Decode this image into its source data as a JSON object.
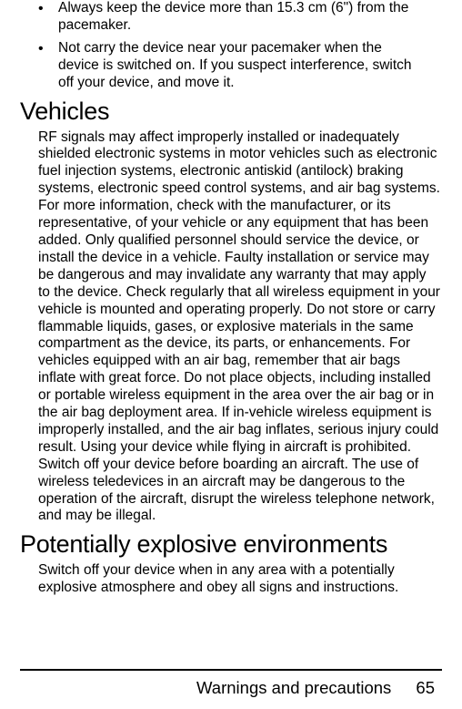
{
  "bullets": [
    "Always keep the device more than 15.3 cm (6\") from the pacemaker.",
    "Not carry the device near your pacemaker when the device is switched on. If you suspect interference, switch off your device, and move it."
  ],
  "sections": [
    {
      "heading": "Vehicles",
      "body": "RF signals may affect improperly installed or inadequately shielded electronic systems in motor vehicles such as electronic fuel injection systems, electronic antiskid (antilock) braking systems, electronic speed control systems, and air bag systems. For more information, check with the manufacturer, or its representative, of your vehicle or any equipment that has been added. Only qualified personnel should service the device, or install the device in a vehicle. Faulty installation or service may be dangerous and may invalidate any warranty that may apply to the device. Check regularly that all wireless equipment in your vehicle is mounted and operating properly. Do not store or carry flammable liquids, gases, or explosive materials in the same compartment as the device, its parts, or enhancements. For vehicles equipped with an air bag, remember that air bags inflate with great force. Do not place objects, including installed or portable wireless equipment in the area over the air bag or in the air bag deployment area. If in-vehicle wireless equipment is improperly installed, and the air bag inflates, serious injury could result. Using your device while flying in aircraft is prohibited. Switch off your device before boarding an aircraft. The use of wireless teledevices in an aircraft may be dangerous to the operation of the aircraft, disrupt the wireless telephone network, and may be illegal."
    },
    {
      "heading": "Potentially explosive environments",
      "body": "Switch off your device when in any area with a potentially explosive atmosphere and obey all signs and instructions."
    }
  ],
  "footer": {
    "label": "Warnings and precautions",
    "page": "65"
  },
  "colors": {
    "text": "#000000",
    "background": "#ffffff",
    "rule": "#000000"
  }
}
